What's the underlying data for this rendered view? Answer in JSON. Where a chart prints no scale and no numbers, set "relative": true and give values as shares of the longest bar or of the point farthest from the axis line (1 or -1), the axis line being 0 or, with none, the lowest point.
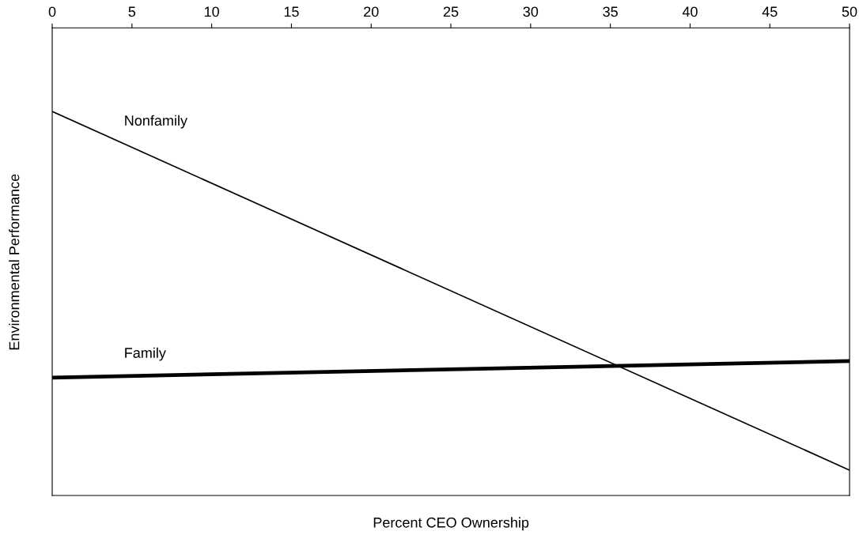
{
  "chart_data": {
    "type": "line",
    "xlabel": "Percent CEO Ownership",
    "ylabel": "Environmental Performance",
    "relative": true,
    "x": [
      0,
      50
    ],
    "xlim": [
      0,
      50
    ],
    "xticks": [
      0,
      5,
      10,
      15,
      20,
      25,
      30,
      35,
      40,
      45,
      50
    ],
    "marker": "none",
    "line_style": "solid",
    "legend": false,
    "grid": false,
    "series": [
      {
        "name": "Nonfamily",
        "color": "#000000",
        "values": [
          1,
          0.066
        ]
      },
      {
        "name": "Family",
        "color": "#000000",
        "values": [
          0.307,
          0.35
        ]
      }
    ]
  }
}
